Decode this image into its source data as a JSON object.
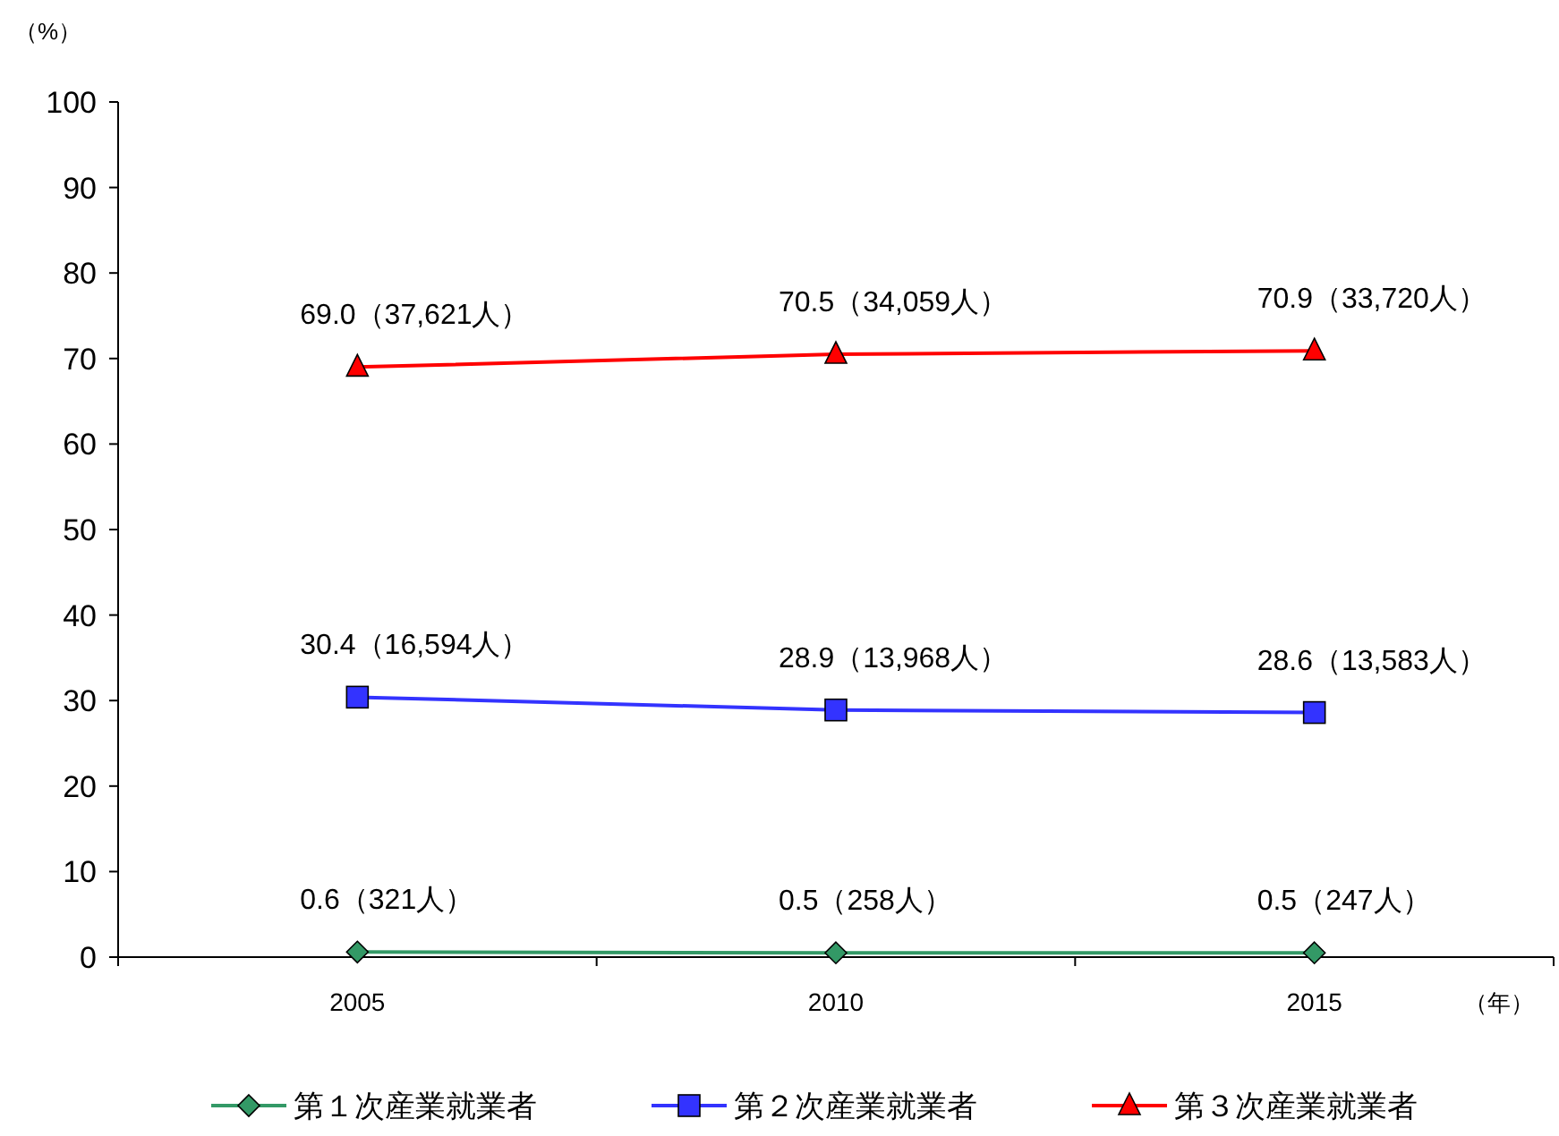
{
  "chart_data": {
    "type": "line",
    "ylabel": "（%）",
    "xlabel": "（年）",
    "categories": [
      "2005",
      "2010",
      "2015"
    ],
    "ylim": [
      0,
      100
    ],
    "yticks": [
      0,
      10,
      20,
      30,
      40,
      50,
      60,
      70,
      80,
      90,
      100
    ],
    "grid": false,
    "legend": "bottom",
    "line_style": "solid",
    "series": [
      {
        "name": "第１次産業就業者",
        "color": "#339966",
        "marker": "diamond",
        "values": [
          0.6,
          0.5,
          0.5
        ],
        "value_labels": [
          "0.6（321人）",
          "0.5（258人）",
          "0.5（247人）"
        ]
      },
      {
        "name": "第２次産業就業者",
        "color": "#3333ff",
        "marker": "square",
        "values": [
          30.4,
          28.9,
          28.6
        ],
        "value_labels": [
          "30.4（16,594人）",
          "28.9（13,968人）",
          "28.6（13,583人）"
        ]
      },
      {
        "name": "第３次産業就業者",
        "color": "#ff0000",
        "marker": "triangle",
        "values": [
          69.0,
          70.5,
          70.9
        ],
        "value_labels": [
          "69.0（37,621人）",
          "70.5（34,059人）",
          "70.9（33,720人）"
        ]
      }
    ]
  }
}
